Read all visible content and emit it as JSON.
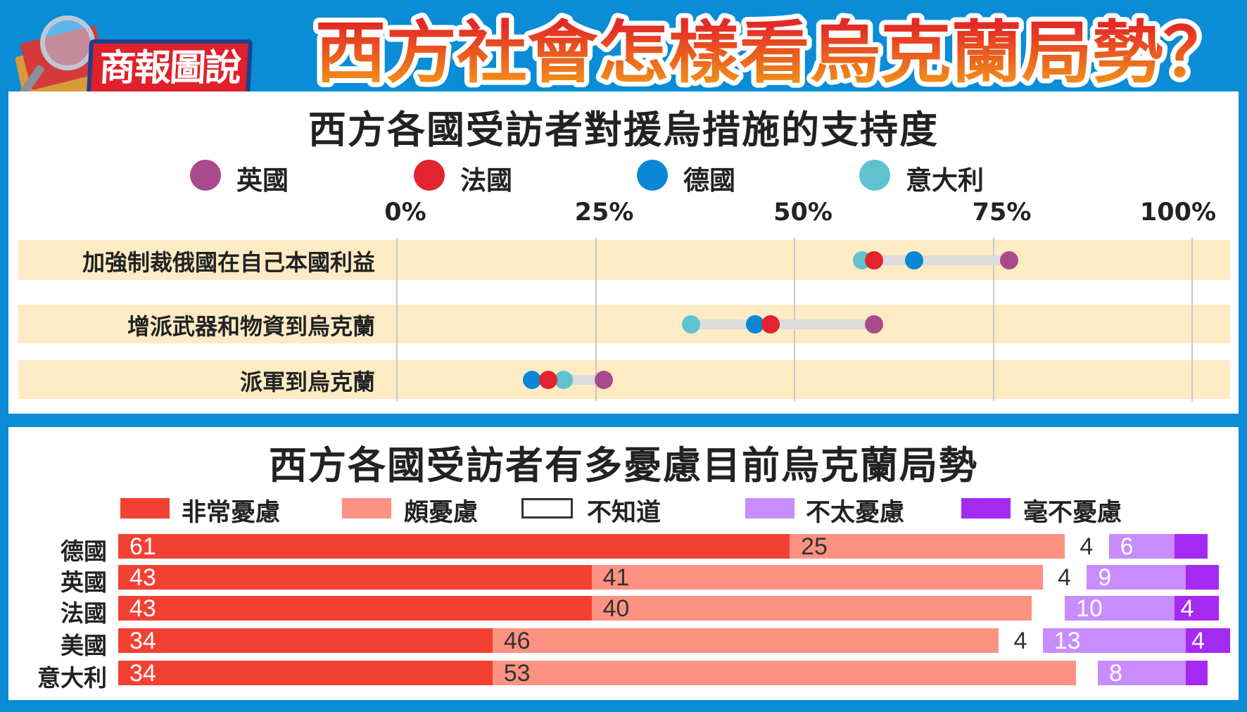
{
  "header": {
    "logo_text": "商報圖說",
    "title": "西方社會怎樣看烏克蘭局勢？"
  },
  "colors": {
    "frame": "#0a8cd6",
    "band": "#fdebc4",
    "uk": "#a94a8c",
    "france": "#e3232f",
    "germany": "#0a87d4",
    "italy": "#5ec3cf",
    "very_worried": "#f24133",
    "fairly_worried": "#fd9282",
    "dont_know": "#ffffff",
    "not_very_worried": "#c88cfc",
    "not_at_all_worried": "#a42af2"
  },
  "chart_data": [
    {
      "type": "scatter",
      "title": "西方各國受訪者對援烏措施的支持度",
      "legend": [
        {
          "name": "英國",
          "color": "#a94a8c"
        },
        {
          "name": "法國",
          "color": "#e3232f"
        },
        {
          "name": "德國",
          "color": "#0a87d4"
        },
        {
          "name": "意大利",
          "color": "#5ec3cf"
        }
      ],
      "legend_placement": "top",
      "xlim": [
        0,
        100
      ],
      "x_ticks": [
        "0%",
        "25%",
        "50%",
        "75%",
        "100%"
      ],
      "grid": true,
      "categories": [
        "加強制裁俄國在自己本國利益",
        "增派武器和物資到烏克蘭",
        "派軍到烏克蘭"
      ],
      "series": [
        {
          "name": "英國",
          "values": [
            77,
            60,
            26
          ]
        },
        {
          "name": "法國",
          "values": [
            60,
            47,
            19
          ]
        },
        {
          "name": "德國",
          "values": [
            65,
            45,
            17
          ]
        },
        {
          "name": "意大利",
          "values": [
            58.5,
            37,
            21
          ]
        }
      ]
    },
    {
      "type": "bar",
      "stacked": true,
      "orientation": "horizontal",
      "title": "西方各國受訪者有多憂慮目前烏克蘭局勢",
      "legend_placement": "top",
      "legend": [
        "非常憂慮",
        "頗憂慮",
        "不知道",
        "不太憂慮",
        "毫不憂慮"
      ],
      "categories": [
        "德國",
        "英國",
        "法國",
        "美國",
        "意大利"
      ],
      "series": [
        {
          "name": "非常憂慮",
          "values": [
            61,
            43,
            43,
            34,
            34
          ],
          "printed": [
            true,
            true,
            true,
            true,
            true
          ]
        },
        {
          "name": "頗憂慮",
          "values": [
            25,
            41,
            40,
            46,
            53
          ],
          "printed": [
            true,
            true,
            true,
            true,
            true
          ]
        },
        {
          "name": "不知道",
          "values": [
            4,
            4,
            3,
            4,
            2
          ],
          "printed": [
            true,
            true,
            false,
            true,
            false
          ]
        },
        {
          "name": "不太憂慮",
          "values": [
            6,
            9,
            10,
            13,
            8
          ],
          "printed": [
            true,
            true,
            true,
            true,
            true
          ]
        },
        {
          "name": "毫不憂慮",
          "values": [
            3,
            3,
            4,
            4,
            2
          ],
          "printed": [
            false,
            false,
            true,
            true,
            false
          ]
        }
      ]
    }
  ]
}
